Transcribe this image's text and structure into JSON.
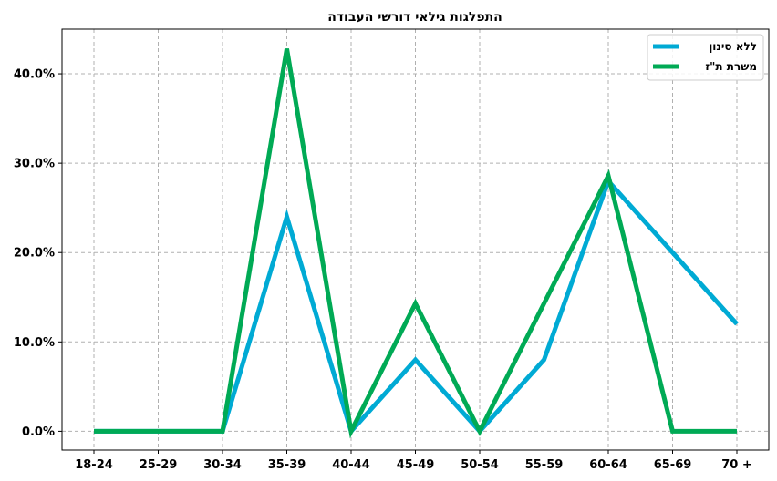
{
  "chart_data": {
    "type": "line",
    "title": "התפלגות גילאי דורשי העבודה",
    "xlabel": "",
    "ylabel": "",
    "categories": [
      "18-24",
      "25-29",
      "30-34",
      "35-39",
      "40-44",
      "45-49",
      "50-54",
      "55-59",
      "60-64",
      "65-69",
      "70 +"
    ],
    "ylim": [
      -0.021,
      0.45
    ],
    "yticks": [
      0.0,
      0.1,
      0.2,
      0.3,
      0.4
    ],
    "ytick_labels": [
      "0.0%",
      "10.0%",
      "20.0%",
      "30.0%",
      "40.0%"
    ],
    "grid": true,
    "legend_position": "top-right",
    "series": [
      {
        "name": "ללא סינון",
        "color": "#00AAD4",
        "values": [
          0.0,
          0.0,
          0.0,
          0.24,
          0.0,
          0.08,
          0.0,
          0.08,
          0.28,
          0.2,
          0.12
        ]
      },
      {
        "name": "משרת ת\"ז",
        "color": "#00AA55",
        "values": [
          0.0,
          0.0,
          0.0,
          0.428,
          0.0,
          0.143,
          0.0,
          0.143,
          0.286,
          0.0,
          0.0
        ]
      }
    ]
  }
}
